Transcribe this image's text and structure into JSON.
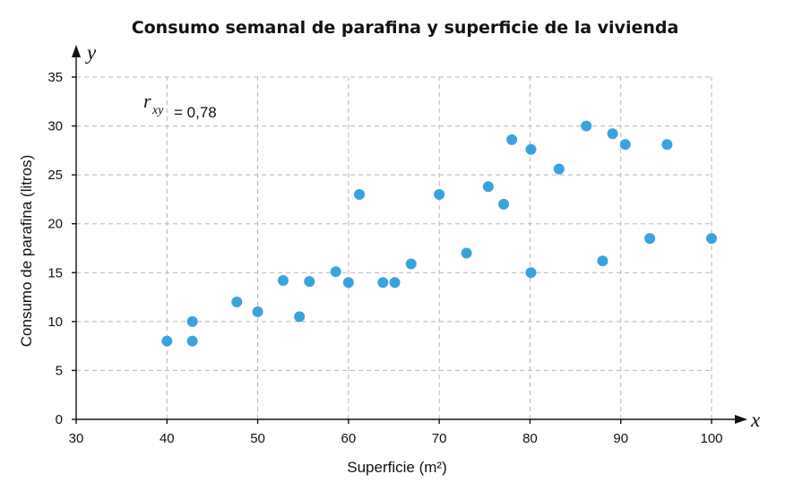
{
  "chart_data": {
    "type": "scatter",
    "title": "Consumo semanal de parafina y superficie de la vivienda",
    "xlabel": "Superficie (m²)",
    "ylabel": "Consumo de parafina (litros)",
    "x_axis_var": "x",
    "y_axis_var": "y",
    "xlim": [
      30,
      100
    ],
    "ylim": [
      0,
      35
    ],
    "x_ticks": [
      30,
      40,
      50,
      60,
      70,
      80,
      90,
      100
    ],
    "y_ticks": [
      0,
      5,
      10,
      15,
      20,
      25,
      30,
      35
    ],
    "x_tick_labels": [
      "30",
      "40",
      "50",
      "60",
      "70",
      "80",
      "90",
      "100"
    ],
    "y_tick_labels": [
      "0",
      "5",
      "10",
      "15",
      "20",
      "25",
      "30",
      "35"
    ],
    "grid": true,
    "point_color": "#3aa3de",
    "annotation": {
      "symbol": "r",
      "subscript": "xy",
      "value": "= 0,78"
    },
    "points": [
      [
        40,
        8
      ],
      [
        42.8,
        10
      ],
      [
        42.8,
        8
      ],
      [
        47.7,
        12
      ],
      [
        50,
        11
      ],
      [
        52.8,
        14.2
      ],
      [
        54.6,
        10.5
      ],
      [
        55.7,
        14.1
      ],
      [
        58.6,
        15.1
      ],
      [
        60,
        14
      ],
      [
        61.2,
        23
      ],
      [
        63.8,
        14
      ],
      [
        65.1,
        14
      ],
      [
        66.9,
        15.9
      ],
      [
        70,
        23
      ],
      [
        73,
        17
      ],
      [
        75.4,
        23.8
      ],
      [
        77.1,
        22
      ],
      [
        78,
        28.6
      ],
      [
        80.1,
        27.6
      ],
      [
        80.1,
        15
      ],
      [
        83.2,
        25.6
      ],
      [
        86.2,
        30
      ],
      [
        88,
        16.2
      ],
      [
        89.1,
        29.2
      ],
      [
        90.5,
        28.1
      ],
      [
        93.2,
        18.5
      ],
      [
        95.1,
        28.1
      ],
      [
        100,
        18.5
      ]
    ]
  }
}
